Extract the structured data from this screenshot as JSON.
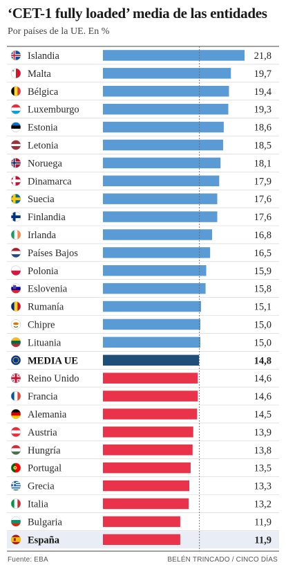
{
  "title": "‘CET-1 fully loaded’ media de las entidades",
  "subtitle": "Por países de la UE. En %",
  "source": "Fuente: EBA",
  "credit": "BELÉN TRINCADO / CINCO DÍAS",
  "colors": {
    "above_average": "#5b9bd5",
    "average": "#1f4e79",
    "below_average": "#e8334a",
    "highlight_row": "#e9eef6",
    "gridline": "#cfcfcf",
    "average_line": "#666666"
  },
  "chart_data": {
    "type": "bar",
    "orientation": "horizontal",
    "categories": [
      "Islandia",
      "Malta",
      "Bélgica",
      "Luxemburgo",
      "Estonia",
      "Letonia",
      "Noruega",
      "Dinamarca",
      "Suecia",
      "Finlandia",
      "Irlanda",
      "Países Bajos",
      "Polonia",
      "Eslovenia",
      "Rumanía",
      "Chipre",
      "Lituania",
      "MEDIA UE",
      "Reino Unido",
      "Francia",
      "Alemania",
      "Austria",
      "Hungría",
      "Portugal",
      "Grecia",
      "Italia",
      "Bulgaria",
      "España"
    ],
    "values": [
      21.8,
      19.7,
      19.4,
      19.3,
      18.6,
      18.5,
      18.1,
      17.9,
      17.6,
      17.6,
      16.8,
      16.5,
      15.9,
      15.8,
      15.1,
      15.0,
      15.0,
      14.8,
      14.6,
      14.6,
      14.5,
      13.9,
      13.8,
      13.5,
      13.3,
      13.2,
      11.9,
      11.9
    ],
    "value_labels": [
      "21,8",
      "19,7",
      "19,4",
      "19,3",
      "18,6",
      "18,5",
      "18,1",
      "17,9",
      "17,6",
      "17,6",
      "16,8",
      "16,5",
      "15,9",
      "15,8",
      "15,1",
      "15,0",
      "15,0",
      "14,8",
      "14,6",
      "14,6",
      "14,5",
      "13,9",
      "13,8",
      "13,5",
      "13,3",
      "13,2",
      "11,9",
      "11,9"
    ],
    "flag_icons": [
      "flag-iceland-icon",
      "flag-malta-icon",
      "flag-belgium-icon",
      "flag-luxembourg-icon",
      "flag-estonia-icon",
      "flag-latvia-icon",
      "flag-norway-icon",
      "flag-denmark-icon",
      "flag-sweden-icon",
      "flag-finland-icon",
      "flag-ireland-icon",
      "flag-netherlands-icon",
      "flag-poland-icon",
      "flag-slovenia-icon",
      "flag-romania-icon",
      "flag-cyprus-icon",
      "flag-lithuania-icon",
      "flag-eu-icon",
      "flag-uk-icon",
      "flag-france-icon",
      "flag-germany-icon",
      "flag-austria-icon",
      "flag-hungary-icon",
      "flag-portugal-icon",
      "flag-greece-icon",
      "flag-italy-icon",
      "flag-bulgaria-icon",
      "flag-spain-icon"
    ],
    "bold_categories": [
      "MEDIA UE",
      "España"
    ],
    "average_category": "MEDIA UE",
    "highlighted_category": "España",
    "reference_line_value": 14.8,
    "xlim": [
      0,
      21.8
    ],
    "grid": false,
    "legend": "none"
  }
}
